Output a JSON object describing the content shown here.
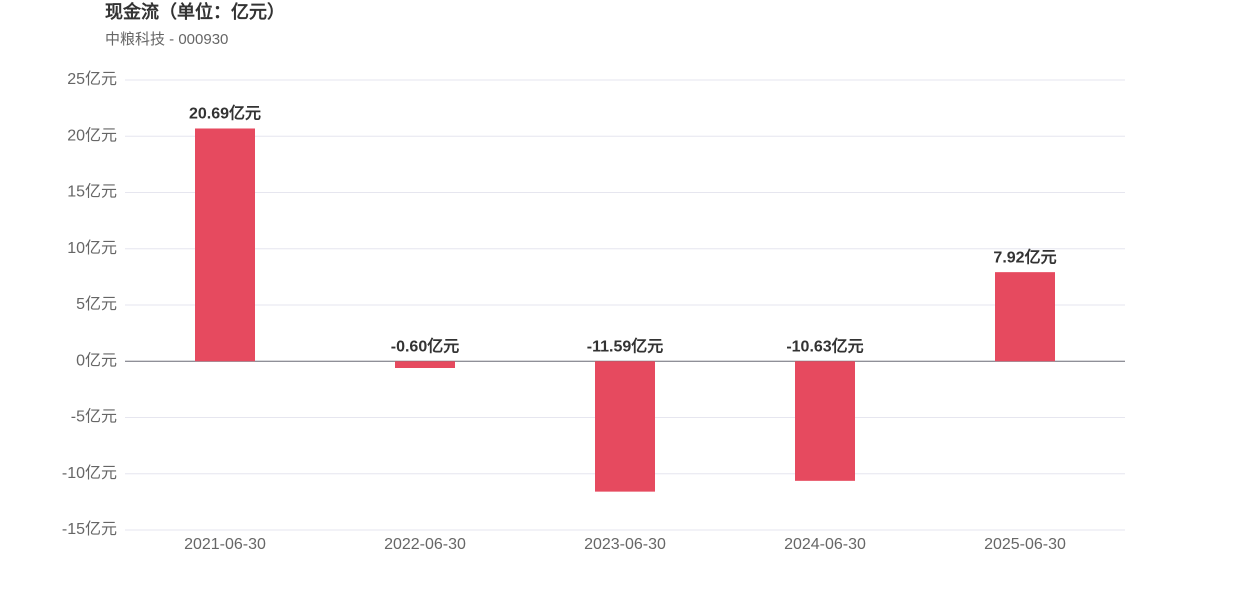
{
  "chart_data": {
    "type": "bar",
    "title": "现金流（单位：亿元）",
    "subtitle": "中粮科技 - 000930",
    "categories": [
      "2021-06-30",
      "2022-06-30",
      "2023-06-30",
      "2024-06-30",
      "2025-06-30"
    ],
    "values": [
      20.69,
      -0.6,
      -11.59,
      -10.63,
      7.92
    ],
    "value_labels": [
      "20.69亿元",
      "-0.60亿元",
      "-11.59亿元",
      "-10.63亿元",
      "7.92亿元"
    ],
    "color": "#e64a5f",
    "ylim": [
      -15,
      25
    ],
    "yticks": [
      {
        "value": -15,
        "label": "-15亿元"
      },
      {
        "value": -10,
        "label": "-10亿元"
      },
      {
        "value": -5,
        "label": "-5亿元"
      },
      {
        "value": 0,
        "label": "0亿元"
      },
      {
        "value": 5,
        "label": "5亿元"
      },
      {
        "value": 10,
        "label": "10亿元"
      },
      {
        "value": 15,
        "label": "15亿元"
      },
      {
        "value": 20,
        "label": "20亿元"
      },
      {
        "value": 25,
        "label": "25亿元"
      }
    ],
    "grid": true
  }
}
